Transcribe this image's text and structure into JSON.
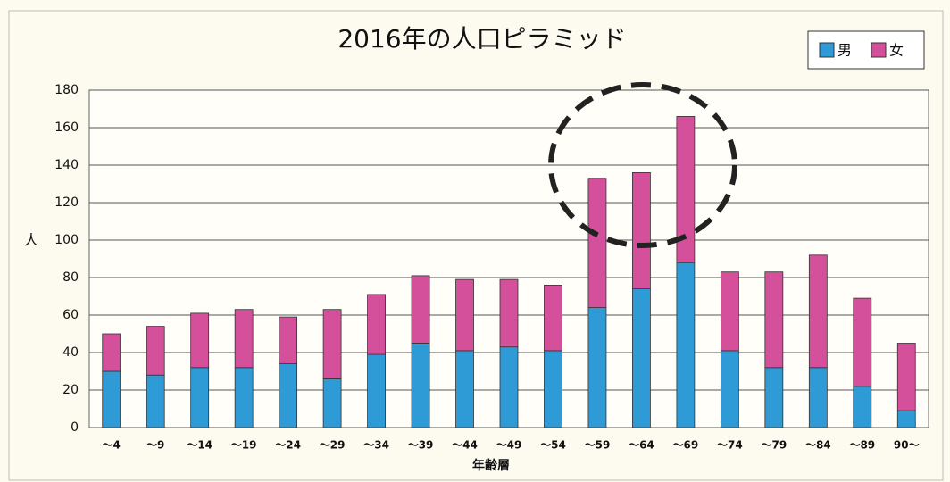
{
  "chart_data": {
    "type": "stacked_bar",
    "title": "2016年の人口ピラミッド",
    "xlabel": "年齢層",
    "ylabel": "人",
    "categories": [
      "～4",
      "～9",
      "～14",
      "～19",
      "～24",
      "～29",
      "～34",
      "～39",
      "～44",
      "～49",
      "～54",
      "～59",
      "～64",
      "～69",
      "～74",
      "～79",
      "～84",
      "～89",
      "90～"
    ],
    "series": [
      {
        "name": "男",
        "color": "#2e9ad6",
        "values": [
          30,
          28,
          32,
          32,
          34,
          26,
          39,
          45,
          41,
          43,
          41,
          64,
          74,
          88,
          41,
          32,
          32,
          22,
          9
        ]
      },
      {
        "name": "女",
        "color": "#d5509b",
        "values": [
          20,
          26,
          29,
          31,
          25,
          37,
          32,
          36,
          38,
          36,
          35,
          69,
          62,
          78,
          42,
          51,
          60,
          47,
          36
        ]
      }
    ],
    "ylim": [
      0,
      180
    ],
    "yticks": [
      0,
      20,
      40,
      60,
      80,
      100,
      120,
      140,
      160,
      180
    ],
    "grid": true,
    "legend": "upper right"
  }
}
